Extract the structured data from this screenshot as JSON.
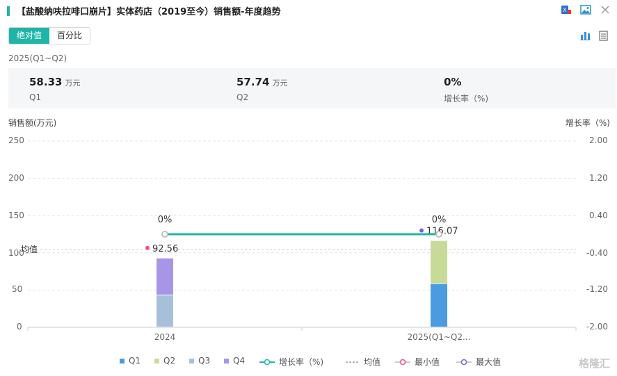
{
  "header": {
    "title": "【盐酸纳呋拉啡口崩片】实体药店（2019至今）销售额-年度趋势",
    "icons": [
      "excel-icon",
      "image-icon",
      "close-icon"
    ]
  },
  "tabs": [
    {
      "label": "绝对值",
      "active": true
    },
    {
      "label": "百分比",
      "active": false
    }
  ],
  "view_icons": [
    "bar-chart-icon",
    "table-icon"
  ],
  "period_label": "2025(Q1~Q2)",
  "summary": [
    {
      "value": "58.33",
      "unit": "万元",
      "label": "Q1"
    },
    {
      "value": "57.74",
      "unit": "万元",
      "label": "Q2"
    },
    {
      "value": "0%",
      "unit": "",
      "label": "增长率（%)"
    }
  ],
  "chart_data": {
    "type": "bar",
    "stacked": true,
    "categories": [
      "2024",
      "2025(Q1~Q2..."
    ],
    "series": [
      {
        "name": "Q1",
        "color": "#4a9be0",
        "values": [
          null,
          58.33
        ]
      },
      {
        "name": "Q2",
        "color": "#c8db96",
        "values": [
          null,
          57.74
        ]
      },
      {
        "name": "Q3",
        "color": "#a7c0da",
        "values": [
          43.0,
          null
        ]
      },
      {
        "name": "Q4",
        "color": "#a895e6",
        "values": [
          49.56,
          null
        ]
      }
    ],
    "line": {
      "name": "增长率（%)",
      "color": "#1fb5a6",
      "axis": "right",
      "values": [
        0,
        0
      ],
      "labels": [
        "0%",
        "0%"
      ]
    },
    "totals_labels": [
      "92.56",
      "116.07"
    ],
    "average_label": "均值",
    "average_value": 104.3,
    "ylabel_left": "销售额(万元)",
    "ylabel_right": "增长率（%)",
    "ylim_left": [
      0,
      250
    ],
    "yticks_left": [
      "0",
      "50",
      "100",
      "150",
      "200",
      "250"
    ],
    "ylim_right": [
      -2.0,
      2.0
    ],
    "yticks_right": [
      "-2.00",
      "-1.20",
      "-0.40",
      "0.40",
      "1.20",
      "2.00"
    ],
    "grid": true,
    "legend_position": "bottom",
    "legend": [
      {
        "name": "Q1",
        "kind": "square",
        "color": "#4a9be0"
      },
      {
        "name": "Q2",
        "kind": "square",
        "color": "#c8db96"
      },
      {
        "name": "Q3",
        "kind": "square",
        "color": "#a7c0da"
      },
      {
        "name": "Q4",
        "kind": "square",
        "color": "#a895e6"
      },
      {
        "name": "增长率（%)",
        "kind": "line-circle",
        "color": "#1fb5a6"
      },
      {
        "name": "均值",
        "kind": "dashed",
        "color": "#999999"
      },
      {
        "name": "最小值",
        "kind": "line-circle",
        "color": "#f0508a"
      },
      {
        "name": "最大值",
        "kind": "line-circle",
        "color": "#6a6adb"
      }
    ]
  },
  "watermark": "格隆汇"
}
